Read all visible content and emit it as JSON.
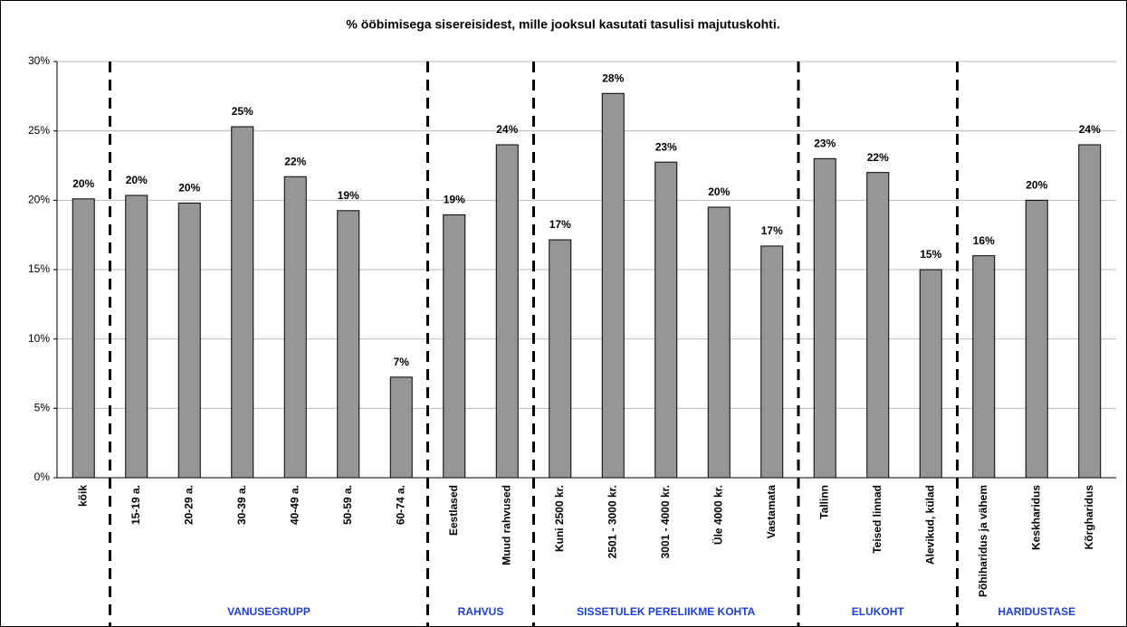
{
  "chart_data": {
    "type": "bar",
    "title": "% ööbimisega sisereisidest, mille jooksul kasutati tasulisi majutuskohti.",
    "categories": [
      "kõik",
      "15-19 a.",
      "20-29 a.",
      "30-39 a.",
      "40-49 a.",
      "50-59 a.",
      "60-74 a.",
      "Eestlased",
      "Muud rahvused",
      "Kuni 2500 kr.",
      "2501 - 3000 kr.",
      "3001 - 4000 kr.",
      "Üle 4000 kr.",
      "Vastamata",
      "Tallinn",
      "Teised linnad",
      "Alevikud, külad",
      "Põhiharidus ja vähem",
      "Keskharidus",
      "Kõrgharidus"
    ],
    "values": [
      20.1,
      20.35,
      19.8,
      25.3,
      21.7,
      19.25,
      7.25,
      18.95,
      24.0,
      17.15,
      27.7,
      22.75,
      19.5,
      16.7,
      23.0,
      22.0,
      15.0,
      16.0,
      20.0,
      24.0
    ],
    "value_labels": [
      "20%",
      "20%",
      "20%",
      "25%",
      "22%",
      "19%",
      "7%",
      "19%",
      "24%",
      "17%",
      "28%",
      "23%",
      "20%",
      "17%",
      "23%",
      "22%",
      "15%",
      "16%",
      "20%",
      "24%"
    ],
    "groups": [
      "VANUSEGRUPP",
      "RAHVUS",
      "SISSETULEK PERELIIKME KOHTA",
      "ELUKOHT",
      "HARIDUSTASE"
    ],
    "color": "#969696",
    "ylim": [
      0,
      30
    ],
    "yticks": [
      {
        "value": 0,
        "label": "0%"
      },
      {
        "value": 5,
        "label": "5%"
      },
      {
        "value": 10,
        "label": "10%"
      },
      {
        "value": 15,
        "label": "15%"
      },
      {
        "value": 20,
        "label": "20%"
      },
      {
        "value": 25,
        "label": "25%"
      },
      {
        "value": 30,
        "label": "30%"
      }
    ],
    "grid": true
  }
}
